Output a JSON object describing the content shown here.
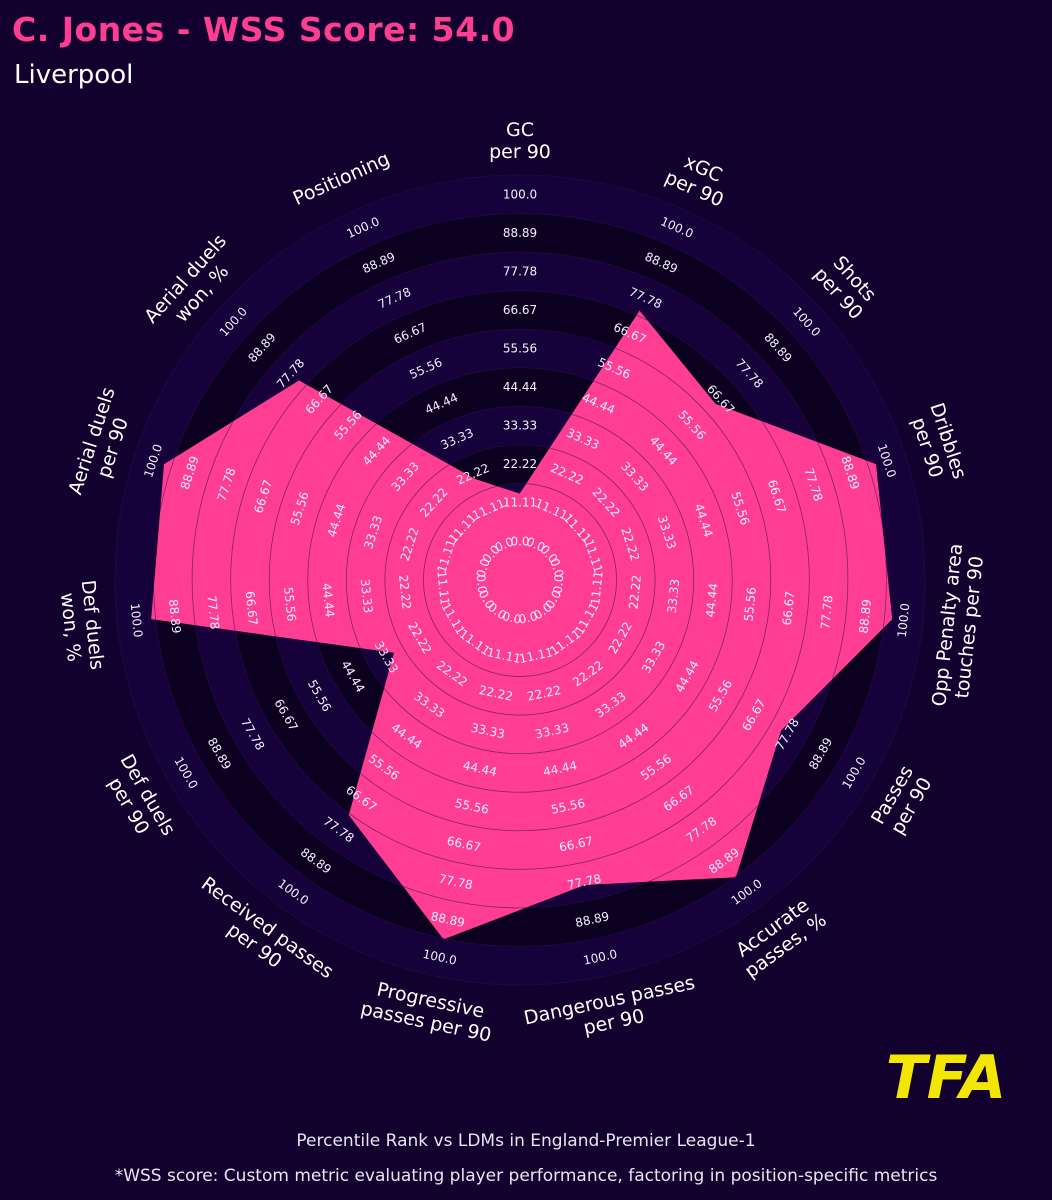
{
  "header": {
    "title": "C. Jones - WSS Score: 54.0",
    "subtitle": "Liverpool"
  },
  "colors": {
    "background": "#12002f",
    "title": "#ff3e93",
    "polygon": "#ff3e93",
    "ring_dark": "#0b0020",
    "ring_light": "#16013a",
    "logo": "#f3e600"
  },
  "logo": {
    "text": "TFA"
  },
  "footer": {
    "note1": "Percentile Rank vs LDMs in England-Premier League-1",
    "note2": "*WSS score: Custom metric evaluating player performance, factoring in position-specific metrics"
  },
  "chart_data": {
    "type": "radar",
    "title": "C. Jones - WSS Score: 54.0",
    "subtitle": "Liverpool",
    "range": [
      0,
      100
    ],
    "ring_labels": [
      "0.0",
      "11.11",
      "22.22",
      "33.33",
      "44.44",
      "55.56",
      "66.67",
      "77.78",
      "88.89",
      "100.0"
    ],
    "grid": false,
    "axes": [
      {
        "label": [
          "GC",
          "per 90"
        ],
        "value": 8
      },
      {
        "label": [
          "xGC",
          "per 90"
        ],
        "value": 68
      },
      {
        "label": [
          "Shots",
          "per 90"
        ],
        "value": 59
      },
      {
        "label": [
          "Dribbles",
          "per 90"
        ],
        "value": 91
      },
      {
        "label": [
          "Opp Penalty area",
          "touches per 90"
        ],
        "value": 91
      },
      {
        "label": [
          "Passes",
          "per 90"
        ],
        "value": 70
      },
      {
        "label": [
          "Accurate",
          "passes, %"
        ],
        "value": 89
      },
      {
        "label": [
          "Dangerous passes",
          "per 90"
        ],
        "value": 73
      },
      {
        "label": [
          "Progressive",
          "passes per 90"
        ],
        "value": 89
      },
      {
        "label": [
          "Received passes",
          "per 90"
        ],
        "value": 67
      },
      {
        "label": [
          "Def duels",
          "per 90"
        ],
        "value": 25
      },
      {
        "label": [
          "Def duels",
          "won, %"
        ],
        "value": 90
      },
      {
        "label": [
          "Aerial duels",
          "per 90"
        ],
        "value": 91
      },
      {
        "label": [
          "Aerial duels",
          "won, %"
        ],
        "value": 69
      },
      {
        "label": [
          "Positioning"
        ],
        "value": 15
      }
    ]
  }
}
